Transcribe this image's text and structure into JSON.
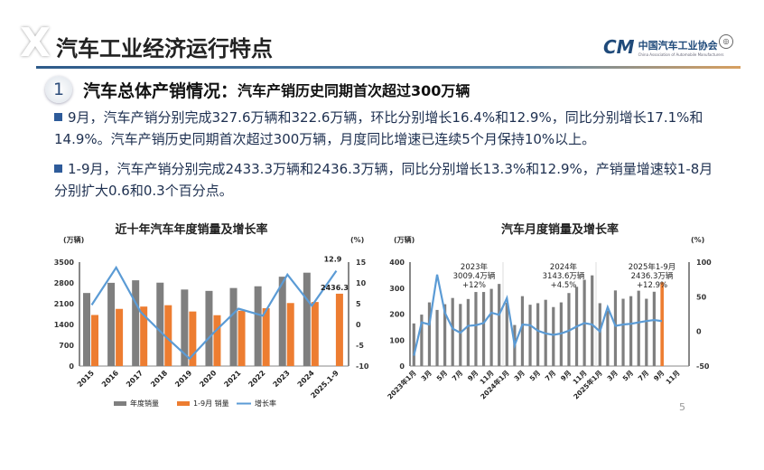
{
  "slide": {
    "title": "汽车工业经济运行特点",
    "logo": {
      "cn": "中国汽车工业协会",
      "en": "China Association of Automobile Manufacturers",
      "mark": "CM"
    },
    "section": {
      "number": "1",
      "heading": "汽车总体产销情况：",
      "subheading": "汽车产销历史同期首次超过300万辆"
    },
    "bullets": [
      "9月，汽车产销分别完成327.6万辆和322.6万辆，环比分别增长16.4%和12.9%，同比分别增长17.1%和14.9%。汽车产销历史同期首次超过300万辆，月度同比增速已连续5个月保持10%以上。",
      "1-9月，汽车产销分别完成2433.3万辆和2436.3万辆，同比分别增长13.3%和12.9%，产销量增速较1-8月分别扩大0.6和0.3个百分点。"
    ],
    "page_number": "5"
  },
  "chart_data": [
    {
      "type": "bar",
      "title": "近十年汽车年度销量及增长率",
      "ylabel": "(万辆)",
      "y2label": "(%)",
      "ylim": [
        0,
        3500
      ],
      "yticks": [
        0,
        700,
        1400,
        2100,
        2800,
        3500
      ],
      "y2lim": [
        -10,
        15
      ],
      "y2ticks": [
        -10,
        -5,
        0,
        5,
        10,
        15
      ],
      "categories": [
        "2015",
        "2016",
        "2017",
        "2018",
        "2019",
        "2020",
        "2021",
        "2022",
        "2023",
        "2024",
        "2025.1-9"
      ],
      "series": [
        {
          "name": "年度销量",
          "type": "bar",
          "color": "#7f7f7f",
          "values": [
            2460,
            2803,
            2888,
            2808,
            2577,
            2531,
            2628,
            2686,
            3009,
            3144,
            null
          ]
        },
        {
          "name": "1-9月 销量",
          "type": "bar",
          "color": "#ed7d31",
          "values": [
            1720,
            1925,
            2003,
            2049,
            1837,
            1712,
            1863,
            1948,
            2122,
            2157,
            2436.3
          ]
        },
        {
          "name": "增长率",
          "type": "line",
          "axis": "right",
          "color": "#5b9bd5",
          "values": [
            4.7,
            13.7,
            3.0,
            -2.8,
            -8.2,
            -1.9,
            3.8,
            2.1,
            12.0,
            4.5,
            12.9
          ]
        }
      ],
      "data_labels": [
        "12.9",
        "2436.3"
      ],
      "legend": "bottom"
    },
    {
      "type": "bar",
      "title": "汽车月度销量及增长率",
      "ylabel": "(万辆)",
      "y2label": "(%)",
      "ylim": [
        0,
        400
      ],
      "yticks": [
        0,
        100,
        200,
        300,
        400
      ],
      "y2lim": [
        -50,
        100
      ],
      "y2ticks": [
        -50,
        0,
        50,
        100
      ],
      "xticks": [
        "2023年1月",
        "3月",
        "5月",
        "7月",
        "9月",
        "11月",
        "2024年1月",
        "3月",
        "5月",
        "7月",
        "9月",
        "11月",
        "2025年1月",
        "3月",
        "5月",
        "7月",
        "9月",
        "11月"
      ],
      "months": 36,
      "series": [
        {
          "type": "bar",
          "color": "#7f7f7f",
          "highlight_color": "#ed7d31",
          "values": [
            164,
            198,
            245,
            216,
            238,
            262,
            239,
            258,
            285,
            285,
            297,
            316,
            244,
            158,
            269,
            236,
            242,
            255,
            227,
            245,
            281,
            305,
            332,
            349,
            242,
            213,
            291,
            259,
            269,
            290,
            259,
            286,
            322.6
          ]
        },
        {
          "type": "line",
          "axis": "right",
          "color": "#5b9bd5",
          "values": [
            -35,
            13,
            10,
            82,
            27,
            4,
            -2,
            8,
            9,
            12,
            27,
            24,
            48,
            -20,
            10,
            9,
            1,
            -3,
            -5,
            -3,
            1,
            7,
            12,
            10,
            0,
            35,
            8,
            10,
            11,
            13,
            15,
            16.4,
            14.9
          ]
        }
      ],
      "annotations": [
        {
          "lines": [
            "2023年",
            "3009.4万辆",
            "+12%"
          ]
        },
        {
          "lines": [
            "2024年",
            "3143.6万辆",
            "+4.5%"
          ]
        },
        {
          "lines": [
            "2025年1-9月",
            "2436.3万辆",
            "+12.9%"
          ]
        }
      ]
    }
  ]
}
